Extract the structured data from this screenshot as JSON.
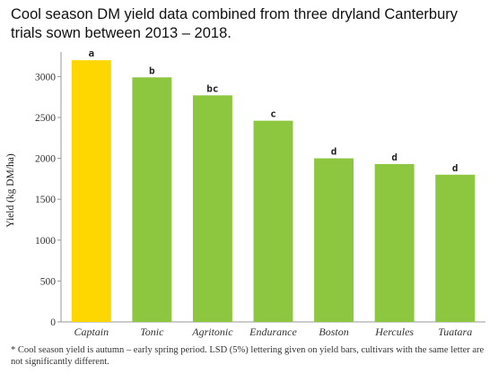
{
  "title_line1": "Cool season DM yield data combined from three dryland Canterbury",
  "title_line2": "trials sown between 2013 – 2018.",
  "footnote": "* Cool season yield is autumn – early spring period. LSD (5%) lettering given on yield bars, cultivars with the same letter are not significantly different.",
  "colors": {
    "highlight": "#FFD700",
    "bar": "#8DC63F",
    "axis": "#999999",
    "grid": "#cccccc"
  },
  "chart_data": {
    "type": "bar",
    "ylabel": "Yield (kg DM/ha)",
    "xlabel": "",
    "ylim": [
      0,
      3300
    ],
    "yticks": [
      0,
      500,
      1000,
      1500,
      2000,
      2500,
      3000
    ],
    "grid": false,
    "categories": [
      "Captain",
      "Tonic",
      "Agritonic",
      "Endurance",
      "Boston",
      "Hercules",
      "Tuatara"
    ],
    "values": [
      3200,
      2990,
      2770,
      2460,
      2000,
      1930,
      1800
    ],
    "significance_letters": [
      "a",
      "b",
      "bc",
      "c",
      "d",
      "d",
      "d"
    ],
    "highlighted_category": "Captain"
  }
}
